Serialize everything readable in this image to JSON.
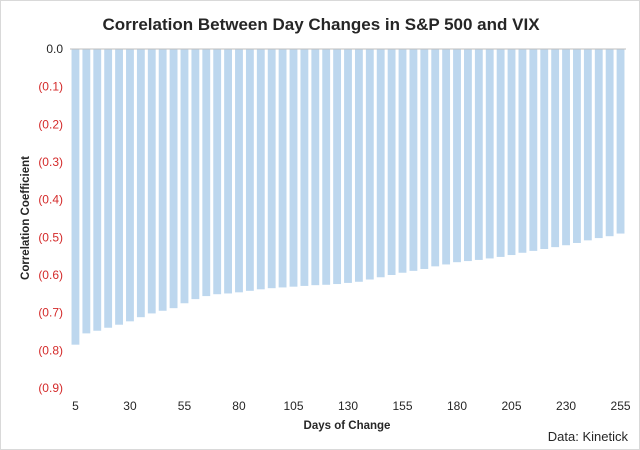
{
  "chart_data": {
    "type": "bar",
    "title": "Correlation Between Day Changes in S&P 500 and VIX",
    "xlabel": "Days of Change",
    "ylabel": "Correlation Coefficient",
    "source": "Data: Kinetick",
    "ylim": [
      -0.9,
      0
    ],
    "yticks": [
      {
        "value": 0,
        "label": "0.0"
      },
      {
        "value": -0.1,
        "label": "(0.1)"
      },
      {
        "value": -0.2,
        "label": "(0.2)"
      },
      {
        "value": -0.3,
        "label": "(0.3)"
      },
      {
        "value": -0.4,
        "label": "(0.4)"
      },
      {
        "value": -0.5,
        "label": "(0.5)"
      },
      {
        "value": -0.6,
        "label": "(0.6)"
      },
      {
        "value": -0.7,
        "label": "(0.7)"
      },
      {
        "value": -0.8,
        "label": "(0.8)"
      },
      {
        "value": -0.9,
        "label": "(0.9)"
      }
    ],
    "xtick_labels": [
      "5",
      "30",
      "55",
      "80",
      "105",
      "130",
      "155",
      "180",
      "205",
      "230",
      "255"
    ],
    "x": [
      5,
      10,
      15,
      20,
      25,
      30,
      35,
      40,
      45,
      50,
      55,
      60,
      65,
      70,
      75,
      80,
      85,
      90,
      95,
      100,
      105,
      110,
      115,
      120,
      125,
      130,
      135,
      140,
      145,
      150,
      155,
      160,
      165,
      170,
      175,
      180,
      185,
      190,
      195,
      200,
      205,
      210,
      215,
      220,
      225,
      230,
      235,
      240,
      245,
      250,
      255
    ],
    "values": [
      -0.785,
      -0.755,
      -0.748,
      -0.74,
      -0.732,
      -0.723,
      -0.712,
      -0.702,
      -0.695,
      -0.688,
      -0.675,
      -0.664,
      -0.656,
      -0.651,
      -0.649,
      -0.646,
      -0.642,
      -0.638,
      -0.635,
      -0.633,
      -0.631,
      -0.629,
      -0.627,
      -0.626,
      -0.624,
      -0.621,
      -0.618,
      -0.612,
      -0.606,
      -0.6,
      -0.594,
      -0.589,
      -0.584,
      -0.577,
      -0.572,
      -0.566,
      -0.563,
      -0.56,
      -0.556,
      -0.552,
      -0.547,
      -0.541,
      -0.536,
      -0.531,
      -0.526,
      -0.521,
      -0.515,
      -0.508,
      -0.502,
      -0.497,
      -0.49
    ],
    "colors": {
      "bar": "#bdd7ee",
      "negative_tick": "#d42a2a",
      "zero_tick": "#262626",
      "axis": "#bfbfbf"
    },
    "grid": false,
    "legend": "none"
  }
}
